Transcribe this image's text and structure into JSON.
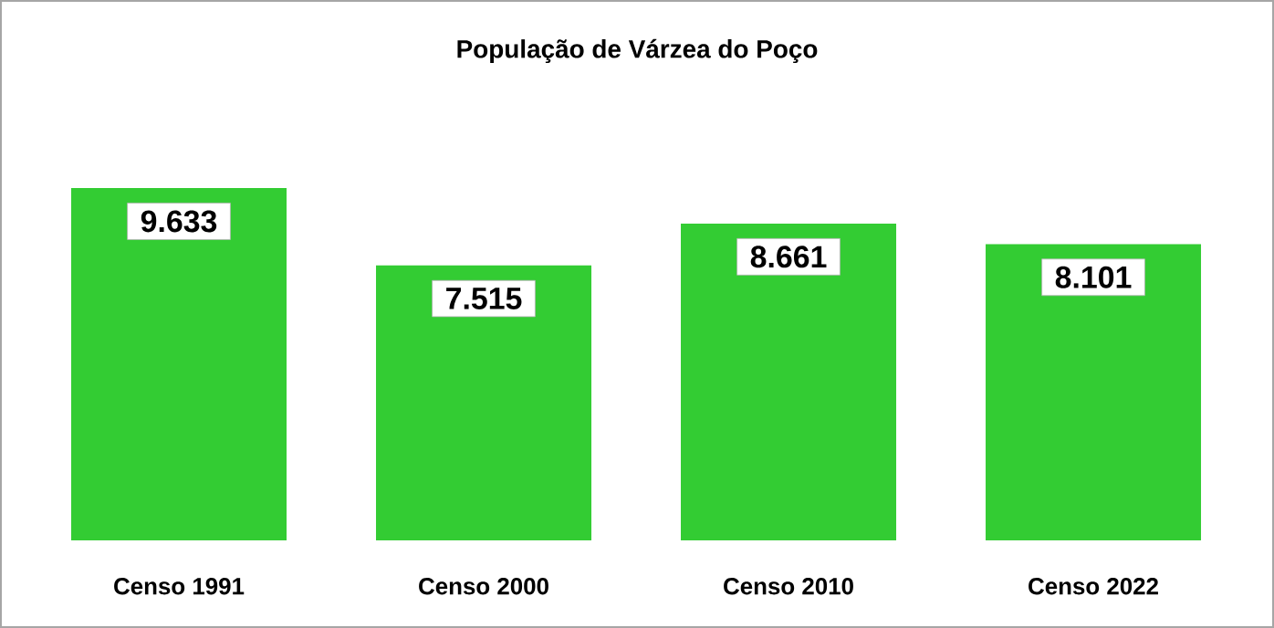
{
  "chart_data": {
    "type": "bar",
    "title": "População de Várzea do Poço",
    "categories": [
      "Censo 1991",
      "Censo 2000",
      "Censo 2010",
      "Censo 2022"
    ],
    "values": [
      9633,
      7515,
      8661,
      8101
    ],
    "value_labels": [
      "9.633",
      "7.515",
      "8.661",
      "8.101"
    ],
    "color": "#33cc33"
  }
}
